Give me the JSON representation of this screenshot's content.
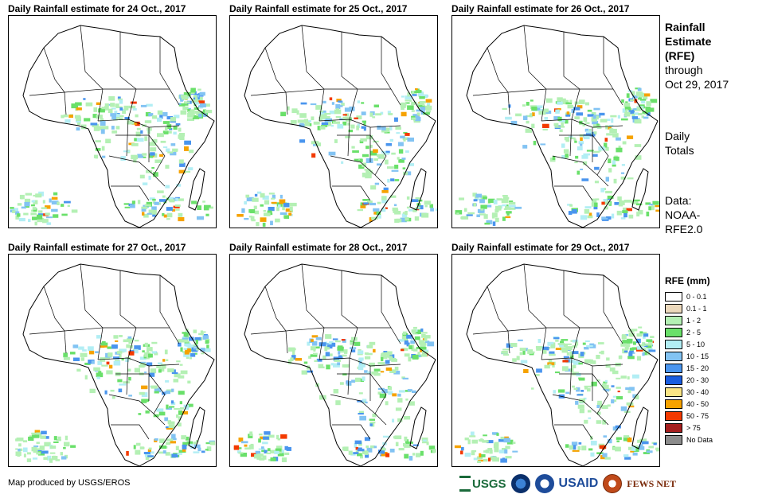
{
  "chart_data": [
    {
      "type": "map",
      "title": "Daily Rainfall estimate for 24 Oct., 2017",
      "date": "24 Oct., 2017"
    },
    {
      "type": "map",
      "title": "Daily Rainfall estimate for 25 Oct., 2017",
      "date": "25 Oct., 2017"
    },
    {
      "type": "map",
      "title": "Daily Rainfall estimate for 26 Oct., 2017",
      "date": "26 Oct., 2017"
    },
    {
      "type": "map",
      "title": "Daily Rainfall estimate for 27 Oct., 2017",
      "date": "27 Oct., 2017"
    },
    {
      "type": "map",
      "title": "Daily Rainfall estimate for 28 Oct., 2017",
      "date": "28 Oct., 2017"
    },
    {
      "type": "map",
      "title": "Daily Rainfall estimate for 29 Oct., 2017",
      "date": "29 Oct., 2017"
    }
  ],
  "sidebar": {
    "title_line1": "Rainfall",
    "title_line2": "Estimate",
    "title_line3": "(RFE)",
    "through": "through",
    "through_date": "Oct 29, 2017",
    "daily": "Daily",
    "totals": "Totals",
    "data_label": "Data:",
    "data_source1": "NOAA-",
    "data_source2": "RFE2.0"
  },
  "legend": {
    "title": "RFE (mm)",
    "items": [
      {
        "label": "0 - 0.1",
        "color": "#ffffff"
      },
      {
        "label": "0.1 - 1",
        "color": "#ecd9bc"
      },
      {
        "label": "1 - 2",
        "color": "#b4f0b4"
      },
      {
        "label": "2 - 5",
        "color": "#6ae06a"
      },
      {
        "label": "5 - 10",
        "color": "#b2eef4"
      },
      {
        "label": "10 - 15",
        "color": "#82c3f3"
      },
      {
        "label": "15 - 20",
        "color": "#4a95ee"
      },
      {
        "label": "20 - 30",
        "color": "#1a5de0"
      },
      {
        "label": "30 - 40",
        "color": "#fbe585"
      },
      {
        "label": "40 - 50",
        "color": "#f6a200"
      },
      {
        "label": "50 - 75",
        "color": "#f33a00"
      },
      {
        "label": "> 75",
        "color": "#a51f1f"
      },
      {
        "label": "No Data",
        "color": "#8c8c8c"
      }
    ]
  },
  "footer": {
    "credit": "Map produced by USGS/EROS",
    "logo_usgs": "USGS",
    "logo_usaid": "USAID",
    "logo_fewsnet": "FEWS NET"
  }
}
